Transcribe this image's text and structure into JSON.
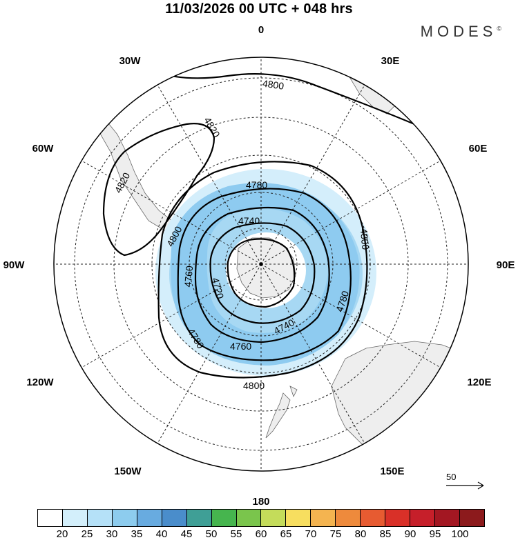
{
  "header": {
    "title": "11/03/2026  00 UTC  + 048 hrs",
    "brand": "MODES",
    "brand_mark": "©"
  },
  "map": {
    "projection": "south polar stereographic",
    "longitude_labels": {
      "lon_0": "0",
      "lon_30w": "30W",
      "lon_30e": "30E",
      "lon_60w": "60W",
      "lon_60e": "60E",
      "lon_90w": "90W",
      "lon_90e": "90E",
      "lon_120w": "120W",
      "lon_120e": "120E",
      "lon_150w": "150W",
      "lon_150e": "150E",
      "lon_180": "180"
    },
    "contour_labels": {
      "c4800_top": "4800",
      "c4820_a": "4820",
      "c4820_b": "4820",
      "c4780_top": "4780",
      "c4740_top": "4740",
      "c4800_left": "4800",
      "c4800_right": "4800",
      "c4760_left": "4760",
      "c4720": "4720",
      "c4780_right": "4780",
      "c4740_bottom": "4740",
      "c4760_bottom": "4760",
      "c4780_left": "4780",
      "c4800_bottom": "4800"
    },
    "contour_levels": [
      4720,
      4740,
      4760,
      4780,
      4800,
      4820
    ],
    "wind_speed_colors": {
      "light": "#d4eefb",
      "medium": "#a7d8f3",
      "strong": "#7ec2ec"
    },
    "land_color": "#eeeeee",
    "reference_vector": "50"
  },
  "colorbar": {
    "labels": [
      "20",
      "25",
      "30",
      "35",
      "40",
      "45",
      "50",
      "55",
      "60",
      "65",
      "70",
      "75",
      "80",
      "85",
      "90",
      "95",
      "100"
    ],
    "colors": [
      "#ffffff",
      "#d3effb",
      "#b5e1f8",
      "#8dccee",
      "#68abe0",
      "#4a8dcb",
      "#3f9f96",
      "#46b54e",
      "#7ac54c",
      "#c4dc5a",
      "#f7de5f",
      "#f4b450",
      "#ee8a3c",
      "#e75b31",
      "#d93028",
      "#c61f2a",
      "#a31722",
      "#8c1a1c"
    ]
  }
}
